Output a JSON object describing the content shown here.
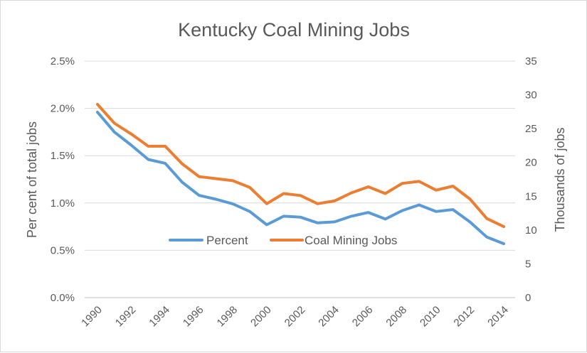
{
  "chart_data": {
    "type": "line",
    "title": "Kentucky Coal Mining Jobs",
    "xlabel": "",
    "ylabel": "Per cent of total jobs",
    "y2label": "Thousands of jobs",
    "x": [
      1990,
      1991,
      1992,
      1993,
      1994,
      1995,
      1996,
      1997,
      1998,
      1999,
      2000,
      2001,
      2002,
      2003,
      2004,
      2005,
      2006,
      2007,
      2008,
      2009,
      2010,
      2011,
      2012,
      2013,
      2014
    ],
    "x_tick_labels": [
      "1990",
      "1992",
      "1994",
      "1996",
      "1998",
      "2000",
      "2002",
      "2004",
      "2006",
      "2008",
      "2010",
      "2012",
      "2014"
    ],
    "ylim": [
      0,
      2.5
    ],
    "y_tick_labels": [
      "0.0%",
      "0.5%",
      "1.0%",
      "1.5%",
      "2.0%",
      "2.5%"
    ],
    "y2lim": [
      0,
      35
    ],
    "y2_tick_labels": [
      "0",
      "5",
      "10",
      "15",
      "20",
      "25",
      "30",
      "35"
    ],
    "grid": true,
    "legend_position": "inside-bottom-center",
    "series": [
      {
        "name": "Percent",
        "axis": "left",
        "color": "#5b9bd5",
        "values": [
          1.96,
          1.75,
          1.61,
          1.46,
          1.42,
          1.22,
          1.08,
          1.04,
          0.99,
          0.91,
          0.77,
          0.86,
          0.85,
          0.79,
          0.8,
          0.86,
          0.9,
          0.83,
          0.92,
          0.98,
          0.91,
          0.93,
          0.8,
          0.64,
          0.57
        ]
      },
      {
        "name": "Coal Mining Jobs",
        "axis": "right",
        "color": "#ed7d31",
        "values": [
          28.6,
          25.8,
          24.2,
          22.4,
          22.4,
          19.8,
          17.9,
          17.6,
          17.3,
          16.3,
          13.9,
          15.4,
          15.1,
          13.9,
          14.3,
          15.5,
          16.4,
          15.4,
          16.9,
          17.2,
          15.9,
          16.5,
          14.6,
          11.7,
          10.5
        ]
      }
    ]
  }
}
